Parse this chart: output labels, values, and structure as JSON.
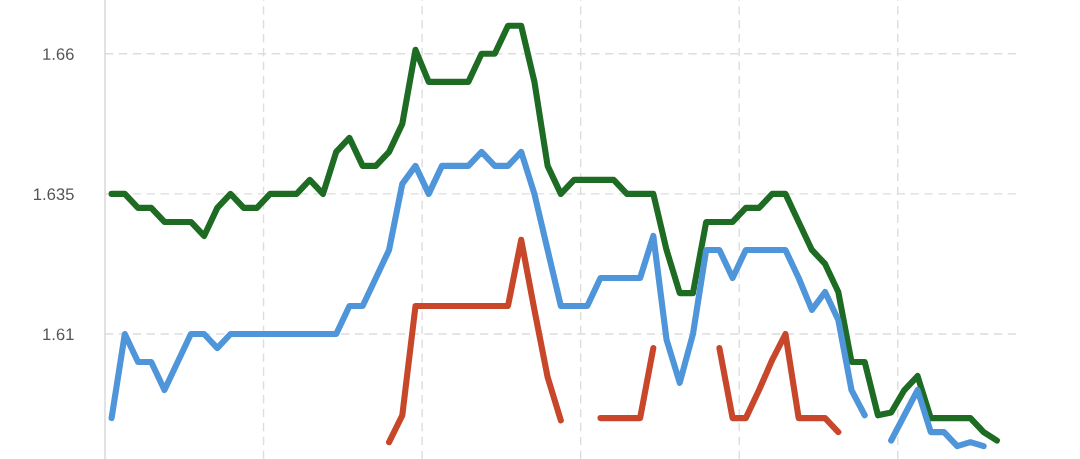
{
  "chart_data": {
    "type": "line",
    "categories": [
      null,
      null,
      null,
      null,
      null,
      null,
      null,
      null,
      null,
      null,
      null,
      null,
      null,
      null,
      null,
      null,
      null,
      null,
      null,
      null,
      null,
      null,
      null,
      null,
      null,
      null,
      null,
      null,
      null,
      null,
      null,
      null,
      null,
      null,
      null,
      null,
      null,
      null,
      null,
      null,
      null,
      null,
      null,
      null,
      null,
      null,
      null,
      null,
      null,
      null,
      null,
      null,
      null,
      null,
      null,
      null,
      null,
      null,
      null,
      null,
      null,
      null,
      null,
      null,
      null,
      null,
      null,
      null
    ],
    "series": [
      {
        "color": "#1e6b23",
        "values": [
          1.635,
          1.635,
          1.6325,
          1.6325,
          1.63,
          1.63,
          1.63,
          1.6275,
          1.6325,
          1.635,
          1.6325,
          1.6325,
          1.635,
          1.635,
          1.635,
          1.6375,
          1.635,
          1.6425,
          1.645,
          1.64,
          1.64,
          1.6425,
          1.6475,
          1.6607,
          1.655,
          1.655,
          1.655,
          1.655,
          1.66,
          1.66,
          1.665,
          1.665,
          1.655,
          1.64,
          1.635,
          1.6375,
          1.6375,
          1.6375,
          1.6375,
          1.635,
          1.635,
          1.635,
          1.625,
          1.6173,
          1.6173,
          1.63,
          1.63,
          1.63,
          1.6325,
          1.6325,
          1.635,
          1.635,
          1.63,
          1.625,
          1.6225,
          1.6175,
          1.605,
          1.605,
          1.5955,
          1.596,
          1.6,
          1.6025,
          1.595,
          1.595,
          1.595,
          1.595,
          1.5925,
          1.591
        ]
      },
      {
        "color": "#4e95d9",
        "values": [
          1.595,
          1.61,
          1.605,
          1.605,
          1.6,
          1.605,
          1.61,
          1.61,
          1.6075,
          1.61,
          1.61,
          1.61,
          1.61,
          1.61,
          1.61,
          1.61,
          1.61,
          1.61,
          1.615,
          1.615,
          1.62,
          1.625,
          1.6368,
          1.64,
          1.635,
          1.64,
          1.64,
          1.64,
          1.6425,
          1.64,
          1.64,
          1.6425,
          1.635,
          1.625,
          1.615,
          1.615,
          1.615,
          1.62,
          1.62,
          1.62,
          1.62,
          1.6275,
          1.609,
          1.6013,
          1.61,
          1.625,
          1.625,
          1.62,
          1.625,
          1.625,
          1.625,
          1.625,
          1.62,
          1.6143,
          1.6175,
          1.6125,
          1.6,
          1.5955,
          null,
          1.591,
          1.5955,
          1.6,
          1.5925,
          1.5925,
          1.59,
          1.5907,
          1.59,
          null
        ]
      },
      {
        "color": "#c8472b",
        "values": [
          null,
          null,
          null,
          null,
          null,
          null,
          null,
          null,
          null,
          null,
          null,
          null,
          null,
          null,
          null,
          null,
          null,
          null,
          null,
          null,
          null,
          1.5907,
          1.5955,
          1.615,
          1.615,
          1.615,
          1.615,
          1.615,
          1.615,
          1.615,
          1.615,
          1.6268,
          1.6143,
          1.6023,
          1.5946,
          null,
          null,
          1.595,
          1.595,
          1.595,
          1.595,
          1.6075,
          null,
          null,
          null,
          null,
          1.6075,
          1.595,
          1.595,
          1.6,
          1.6054,
          1.61,
          1.595,
          1.595,
          1.595,
          1.5925,
          null,
          null,
          null,
          null,
          null,
          null,
          null,
          null,
          null,
          null,
          null,
          null
        ]
      }
    ],
    "ylim": [
      1.5877,
      1.6696
    ],
    "yticks": [
      1.61,
      1.635,
      1.66
    ],
    "grid": true,
    "tick_labels": "y",
    "marker": "none",
    "line_style": "solid"
  }
}
